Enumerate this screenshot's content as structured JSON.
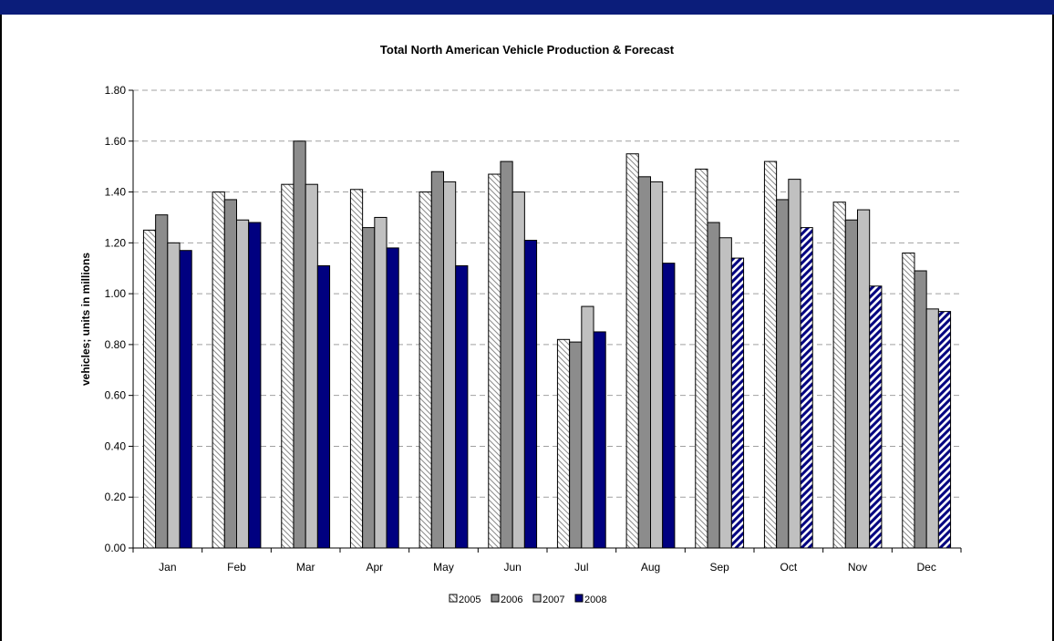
{
  "chart_data": {
    "type": "bar",
    "title": "Total North American Vehicle Production & Forecast",
    "xlabel": "",
    "ylabel": "vehicles; units in millions",
    "ylim": [
      0,
      1.8
    ],
    "y_ticks": [
      "0.00",
      "0.20",
      "0.40",
      "0.60",
      "0.80",
      "1.00",
      "1.20",
      "1.40",
      "1.60",
      "1.80"
    ],
    "grid": true,
    "legend_position": "bottom",
    "categories": [
      "Jan",
      "Feb",
      "Mar",
      "Apr",
      "May",
      "Jun",
      "Jul",
      "Aug",
      "Sep",
      "Oct",
      "Nov",
      "Dec"
    ],
    "series": [
      {
        "name": "2005",
        "fill": "pattern",
        "colors": [
          "#ffffff",
          "#808080"
        ],
        "values": [
          1.25,
          1.4,
          1.43,
          1.41,
          1.4,
          1.47,
          0.82,
          1.55,
          1.49,
          1.52,
          1.36,
          1.16
        ]
      },
      {
        "name": "2006",
        "fill": "solid",
        "colors": [
          "#8c8c8c"
        ],
        "values": [
          1.31,
          1.37,
          1.6,
          1.26,
          1.48,
          1.52,
          0.81,
          1.46,
          1.28,
          1.37,
          1.29,
          1.09
        ]
      },
      {
        "name": "2007",
        "fill": "solid",
        "colors": [
          "#c0c0c0"
        ],
        "values": [
          1.2,
          1.29,
          1.43,
          1.3,
          1.44,
          1.4,
          0.95,
          1.44,
          1.22,
          1.45,
          1.33,
          0.94
        ]
      },
      {
        "name": "2008",
        "fill": "solid",
        "colors": [
          "#000080"
        ],
        "forecast_from_index": 8,
        "forecast_fill": "diagonal-stripe",
        "forecast_colors": [
          "#000080",
          "#ffffff"
        ],
        "values": [
          1.17,
          1.28,
          1.11,
          1.18,
          1.11,
          1.21,
          0.85,
          1.12,
          1.14,
          1.26,
          1.03,
          0.93
        ]
      }
    ]
  }
}
